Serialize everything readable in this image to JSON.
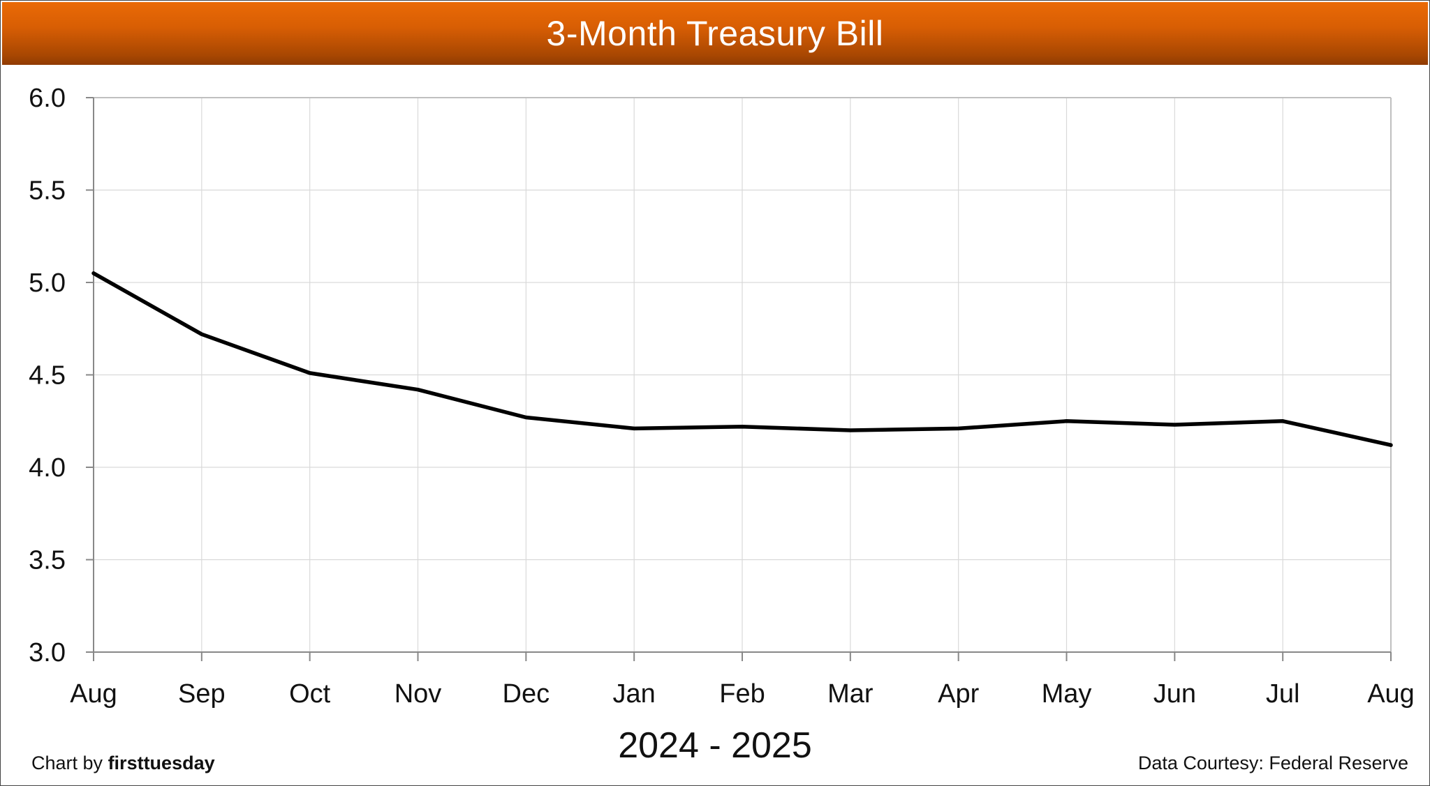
{
  "chart_data": {
    "type": "line",
    "title": "3-Month Treasury Bill",
    "xlabel": "2024 - 2025",
    "ylabel": "",
    "categories": [
      "Aug",
      "Sep",
      "Oct",
      "Nov",
      "Dec",
      "Jan",
      "Feb",
      "Mar",
      "Apr",
      "May",
      "Jun",
      "Jul",
      "Aug"
    ],
    "series": [
      {
        "values": [
          5.05,
          4.72,
          4.51,
          4.42,
          4.27,
          4.21,
          4.22,
          4.2,
          4.21,
          4.25,
          4.23,
          4.25,
          4.12
        ],
        "color": "#000000"
      }
    ],
    "ylim": [
      3.0,
      6.0
    ],
    "yticks": [
      "3.0",
      "3.5",
      "4.0",
      "4.5",
      "5.0",
      "5.5",
      "6.0"
    ],
    "grid": true,
    "legend": "none"
  },
  "credits": {
    "left_prefix": "Chart by",
    "left_brand": "firsttuesday",
    "right": "Data Courtesy: Federal Reserve"
  },
  "colors": {
    "title_bar": "#e56a06",
    "line": "#000000",
    "grid": "#d9d9d9"
  }
}
